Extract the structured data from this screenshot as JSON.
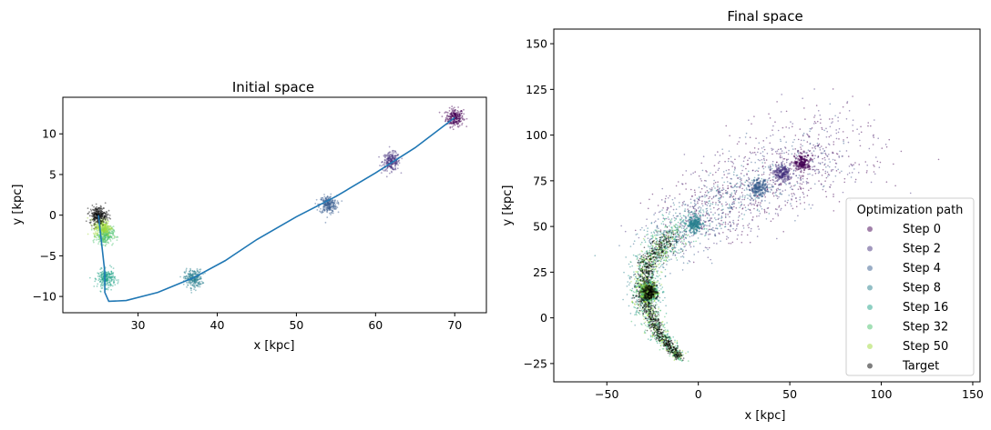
{
  "chart_data": [
    {
      "type": "scatter",
      "title": "Initial space",
      "xlabel": "x [kpc]",
      "ylabel": "y [kpc]",
      "xlim": [
        20.5,
        74
      ],
      "ylim": [
        -12,
        14.5
      ],
      "xticks": [
        30,
        40,
        50,
        60,
        70
      ],
      "yticks": [
        -10,
        -5,
        0,
        5,
        10
      ],
      "grid": false,
      "clusters": [
        {
          "name": "Step 0",
          "x": 70.0,
          "y": 12.0,
          "spread": 0.55,
          "color": "#440154"
        },
        {
          "name": "Step 2",
          "x": 62.0,
          "y": 6.6,
          "spread": 0.55,
          "color": "#46327e"
        },
        {
          "name": "Step 4",
          "x": 54.0,
          "y": 1.3,
          "spread": 0.55,
          "color": "#365c8d"
        },
        {
          "name": "Step 8",
          "x": 37.0,
          "y": -7.8,
          "spread": 0.55,
          "color": "#277f8e"
        },
        {
          "name": "Step 16",
          "x": 26.0,
          "y": -7.8,
          "spread": 0.55,
          "color": "#1fa187"
        },
        {
          "name": "Step 32",
          "x": 25.8,
          "y": -2.5,
          "spread": 0.55,
          "color": "#4ac16d"
        },
        {
          "name": "Step 50",
          "x": 25.5,
          "y": -1.5,
          "spread": 0.55,
          "color": "#a0da39"
        },
        {
          "name": "Target",
          "x": 25.0,
          "y": 0.0,
          "spread": 0.55,
          "color": "#000000"
        }
      ],
      "path": {
        "color": "#1f77b4",
        "x": [
          70,
          65,
          60,
          55,
          50,
          45,
          41,
          37,
          32.5,
          28.5,
          26.3,
          25.8,
          25.8,
          25.4,
          25.0
        ],
        "y": [
          12,
          8.3,
          5.2,
          2.3,
          -0.2,
          -3.0,
          -5.6,
          -7.7,
          -9.5,
          -10.5,
          -10.6,
          -9.5,
          -7.0,
          -3.5,
          0
        ]
      }
    },
    {
      "type": "scatter",
      "title": "Final space",
      "xlabel": "x [kpc]",
      "ylabel": "y [kpc]",
      "xlim": [
        -79,
        154
      ],
      "ylim": [
        -35,
        158
      ],
      "xticks": [
        -50,
        0,
        50,
        100,
        150
      ],
      "yticks": [
        -25,
        0,
        25,
        50,
        75,
        100,
        125,
        150
      ],
      "grid": false,
      "blobs": [
        {
          "name": "Step 0",
          "x": 57,
          "y": 85,
          "color": "#440154"
        },
        {
          "name": "Step 2",
          "x": 46,
          "y": 79,
          "color": "#46327e"
        },
        {
          "name": "Step 4",
          "x": 33,
          "y": 71,
          "color": "#365c8d"
        },
        {
          "name": "Step 8",
          "x": -2,
          "y": 51,
          "color": "#277f8e"
        },
        {
          "name": "Step 16",
          "x": -27,
          "y": 14,
          "color": "#1fa187"
        },
        {
          "name": "Step 32",
          "x": -27,
          "y": 14,
          "color": "#4ac16d"
        },
        {
          "name": "Step 50",
          "x": -27,
          "y": 14,
          "color": "#a0da39"
        },
        {
          "name": "Target",
          "x": -27,
          "y": 14,
          "color": "#000000"
        }
      ],
      "legend": {
        "title": "Optimization path",
        "placement": "lower-right",
        "entries": [
          {
            "label": "Step 0",
            "color": "#440154"
          },
          {
            "label": "Step 2",
            "color": "#46327e"
          },
          {
            "label": "Step 4",
            "color": "#365c8d"
          },
          {
            "label": "Step 8",
            "color": "#277f8e"
          },
          {
            "label": "Step 16",
            "color": "#1fa187"
          },
          {
            "label": "Step 32",
            "color": "#4ac16d"
          },
          {
            "label": "Step 50",
            "color": "#a0da39"
          },
          {
            "label": "Target",
            "color": "#000000"
          }
        ]
      }
    }
  ]
}
